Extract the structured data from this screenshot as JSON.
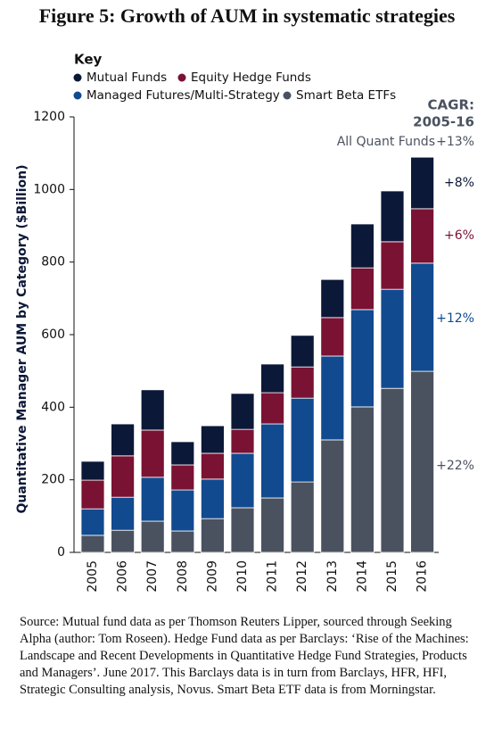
{
  "chart_data": {
    "type": "stacked-bar",
    "title": "Figure 5: Growth of AUM in systematic strategies",
    "legend_title": "Key",
    "y_label": "Quantitative Manager AUM by Category ($Billion)",
    "categories": [
      "2005",
      "2006",
      "2007",
      "2008",
      "2009",
      "2010",
      "2011",
      "2012",
      "2013",
      "2014",
      "2015",
      "2016"
    ],
    "series": [
      {
        "name": "Smart Beta ETFs",
        "color": "#4a5260",
        "values": [
          47,
          61,
          86,
          59,
          93,
          123,
          150,
          194,
          310,
          401,
          452,
          499
        ]
      },
      {
        "name": "Managed Futures/Multi-Strategy",
        "color": "#114a8f",
        "values": [
          73,
          91,
          121,
          113,
          109,
          150,
          204,
          231,
          231,
          268,
          273,
          298
        ]
      },
      {
        "name": "Equity Hedge Funds",
        "color": "#7a1233",
        "values": [
          79,
          114,
          130,
          69,
          71,
          66,
          86,
          86,
          106,
          115,
          131,
          150
        ]
      },
      {
        "name": "Mutual Funds",
        "color": "#0c1838",
        "values": [
          52,
          88,
          111,
          64,
          76,
          99,
          79,
          87,
          105,
          121,
          140,
          142
        ]
      }
    ],
    "ylim": [
      0,
      1200
    ],
    "yticks": [
      0,
      200,
      400,
      600,
      800,
      1000,
      1200
    ],
    "annotations": [
      "CAGR:",
      "2005-16",
      "All Quant Funds",
      "+13%",
      "+8%",
      "+6%",
      "+12%",
      "+22%"
    ]
  },
  "source": "Source: Mutual fund data as per Thomson Reuters Lipper, sourced through Seeking Alpha (author: Tom Roseen). Hedge Fund data as per Barclays: ‘Rise of the Machines: Landscape and Recent Developments in Quantitative Hedge Fund Strategies, Products and Managers’. June 2017. This Barclays data is in turn from Barclays, HFR, HFI, Strategic Consulting analysis, Novus. Smart Beta ETF data is from Morningstar."
}
